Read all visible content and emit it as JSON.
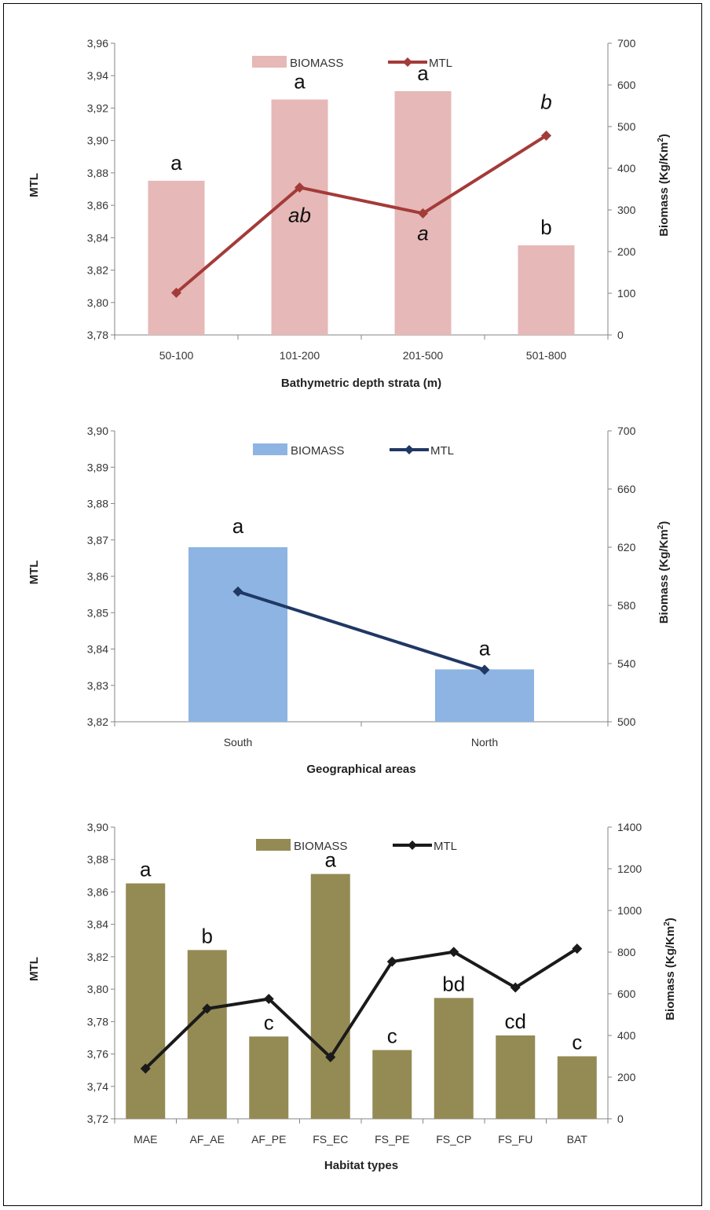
{
  "chart_data": [
    {
      "type": "bar",
      "xlabel": "Bathymetric depth strata (m)",
      "ylabel_left": "MTL",
      "ylabel_right": "Biomass  (Kg/Km",
      "ylabel_right_sup": "2",
      "ylabel_right_end": ")",
      "categories": [
        "50-100",
        "101-200",
        "201-500",
        "501-800"
      ],
      "left_axis": {
        "min": 3.78,
        "max": 3.96,
        "step": 0.02,
        "decimals": 2
      },
      "right_axis": {
        "min": 0,
        "max": 700,
        "step": 100,
        "decimals": 0
      },
      "series": [
        {
          "name": "BIOMASS",
          "type": "bar",
          "axis": "right",
          "color": "#e6b8b7",
          "values": [
            370,
            565,
            585,
            215
          ],
          "labels": [
            "a",
            "a",
            "a",
            "b"
          ],
          "label_italic": false
        },
        {
          "name": "MTL",
          "type": "line",
          "axis": "left",
          "color": "#a33b39",
          "values": [
            3.806,
            3.871,
            3.855,
            3.903
          ],
          "labels": [
            "",
            "ab",
            "a",
            "b"
          ],
          "label_italic": true
        }
      ]
    },
    {
      "type": "bar",
      "xlabel": "Geographical  areas",
      "ylabel_left": "MTL",
      "ylabel_right": "Biomass  (Kg/Km",
      "ylabel_right_sup": "2",
      "ylabel_right_end": ")",
      "categories": [
        "South",
        "North"
      ],
      "left_axis": {
        "min": 3.82,
        "max": 3.9,
        "step": 0.01,
        "decimals": 2
      },
      "right_axis": {
        "min": 500,
        "max": 700,
        "step": 40,
        "decimals": 0
      },
      "series": [
        {
          "name": "BIOMASS",
          "type": "bar",
          "axis": "right",
          "color": "#8db4e2",
          "values": [
            620,
            536
          ],
          "labels": [
            "a",
            "a"
          ],
          "label_italic": false
        },
        {
          "name": "MTL",
          "type": "line",
          "axis": "left",
          "color": "#1f3864",
          "values": [
            3.8558,
            3.8343
          ],
          "labels": [
            "",
            ""
          ],
          "label_italic": false
        }
      ]
    },
    {
      "type": "bar",
      "xlabel": "Habitat types",
      "ylabel_left": "MTL",
      "ylabel_right": "Biomass  (Kg/Km",
      "ylabel_right_sup": "2",
      "ylabel_right_end": ")",
      "categories": [
        "MAE",
        "AF_AE",
        "AF_PE",
        "FS_EC",
        "FS_PE",
        "FS_CP",
        "FS_FU",
        "BAT"
      ],
      "left_axis": {
        "min": 3.72,
        "max": 3.9,
        "step": 0.02,
        "decimals": 2
      },
      "right_axis": {
        "min": 0,
        "max": 1400,
        "step": 200,
        "decimals": 0
      },
      "series": [
        {
          "name": "BIOMASS",
          "type": "bar",
          "axis": "right",
          "color": "#948a54",
          "values": [
            1130,
            810,
            395,
            1175,
            330,
            580,
            400,
            300
          ],
          "labels": [
            "a",
            "b",
            "c",
            "a",
            "c",
            "bd",
            "cd",
            "c"
          ],
          "label_italic": false
        },
        {
          "name": "MTL",
          "type": "line",
          "axis": "left",
          "color": "#1a1a1a",
          "values": [
            3.751,
            3.788,
            3.794,
            3.758,
            3.817,
            3.823,
            3.801,
            3.825
          ],
          "labels": [
            "",
            "",
            "",
            "",
            "",
            "",
            "",
            ""
          ],
          "label_italic": false
        }
      ]
    }
  ]
}
